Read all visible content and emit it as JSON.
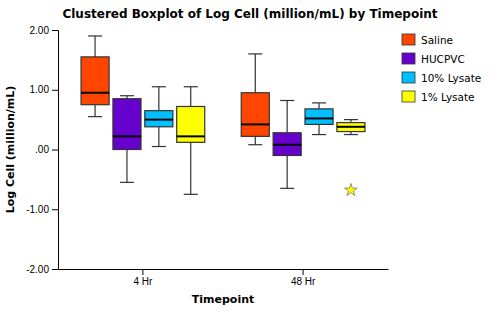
{
  "chart_data": {
    "type": "box",
    "title": "Clustered Boxplot of Log Cell (million/mL) by Timepoint",
    "xlabel": "Timepoint",
    "ylabel": "Log Cell (million/mL)",
    "categories": [
      "4 Hr",
      "48 Hr"
    ],
    "series": [
      {
        "name": "Saline",
        "color": "#FF4500",
        "values": [
          {
            "q1": 0.75,
            "median": 0.95,
            "q3": 1.55,
            "whislo": 0.55,
            "whishi": 1.9,
            "fliers": []
          },
          {
            "q1": 0.22,
            "median": 0.42,
            "q3": 0.95,
            "whislo": 0.08,
            "whishi": 1.6,
            "fliers": []
          }
        ]
      },
      {
        "name": "HUCPVC",
        "color": "#6600CC",
        "values": [
          {
            "q1": 0.0,
            "median": 0.22,
            "q3": 0.85,
            "whislo": -0.55,
            "whishi": 0.9,
            "fliers": []
          },
          {
            "q1": -0.1,
            "median": 0.08,
            "q3": 0.28,
            "whislo": -0.65,
            "whishi": 0.82,
            "fliers": []
          }
        ]
      },
      {
        "name": "10% Lysate",
        "color": "#00BFFF",
        "values": [
          {
            "q1": 0.38,
            "median": 0.5,
            "q3": 0.65,
            "whislo": 0.05,
            "whishi": 1.05,
            "fliers": []
          },
          {
            "q1": 0.42,
            "median": 0.52,
            "q3": 0.68,
            "whislo": 0.25,
            "whishi": 0.78,
            "fliers": []
          }
        ]
      },
      {
        "name": "1% Lysate",
        "color": "#FFFF00",
        "values": [
          {
            "q1": 0.12,
            "median": 0.22,
            "q3": 0.72,
            "whislo": -0.75,
            "whishi": 1.05,
            "fliers": []
          },
          {
            "q1": 0.3,
            "median": 0.38,
            "q3": 0.45,
            "whislo": 0.25,
            "whishi": 0.5,
            "fliers": [
              -0.68
            ]
          }
        ]
      }
    ],
    "marker": "star",
    "ylim": [
      -2.0,
      2.0
    ],
    "yticks": [
      {
        "value": -2.0,
        "label": "-2.00"
      },
      {
        "value": -1.0,
        "label": "-1.00"
      },
      {
        "value": 0.0,
        "label": ".00"
      },
      {
        "value": 1.0,
        "label": "1.00"
      },
      {
        "value": 2.0,
        "label": "2.00"
      }
    ],
    "grid": false,
    "legend": "right"
  }
}
